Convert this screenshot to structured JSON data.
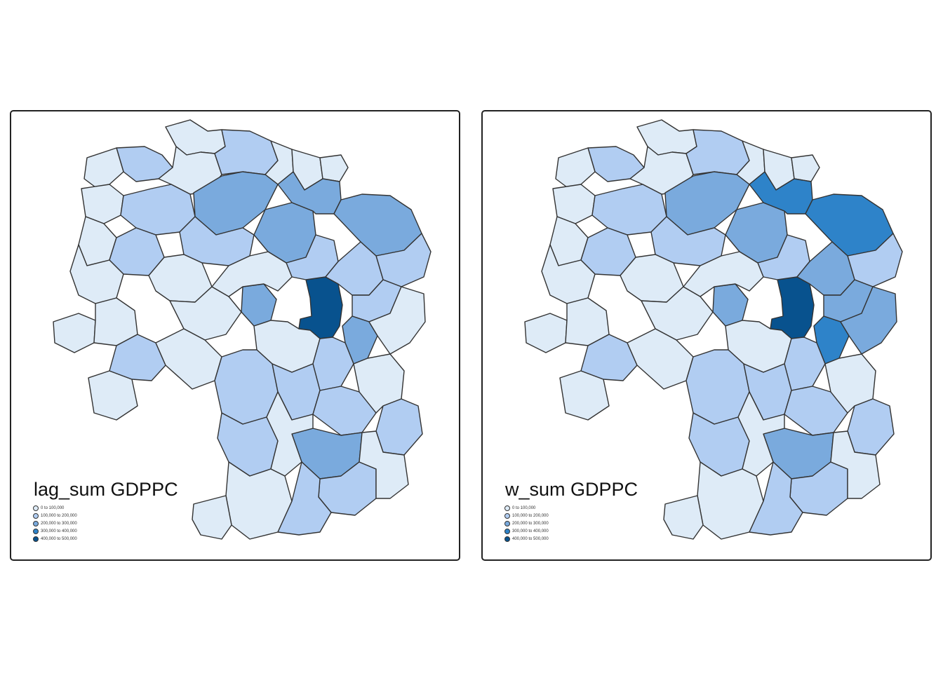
{
  "maps": [
    {
      "id": "lag_sum",
      "title": "lag_sum GDPPC",
      "highlights": {
        "dark": [
          "c1"
        ],
        "medium": [],
        "light_mid": [
          "n2",
          "n3",
          "n4",
          "w1",
          "s5",
          "ne2",
          "e3"
        ]
      }
    },
    {
      "id": "w_sum",
      "title": "w_sum GDPPC",
      "highlights": {
        "dark": [
          "c1"
        ],
        "medium": [
          "n4",
          "ne2",
          "e3"
        ],
        "light_mid": [
          "n2",
          "n3",
          "w1",
          "s5",
          "e1",
          "e2",
          "s6"
        ]
      }
    }
  ],
  "legend": {
    "items": [
      {
        "label": "0 to 100,000",
        "color": "#deebf7"
      },
      {
        "label": "100,000 to 200,000",
        "color": "#b1cdf2"
      },
      {
        "label": "200,000 to 300,000",
        "color": "#7aaadd"
      },
      {
        "label": "300,000 to 400,000",
        "color": "#2e83c9"
      },
      {
        "label": "400,000 to 500,000",
        "color": "#08528e"
      }
    ]
  },
  "colors": {
    "class1": "#deebf7",
    "class2": "#b1cdf2",
    "class3": "#7aaadd",
    "class4": "#2e83c9",
    "class5": "#08528e",
    "border": "#333333"
  }
}
